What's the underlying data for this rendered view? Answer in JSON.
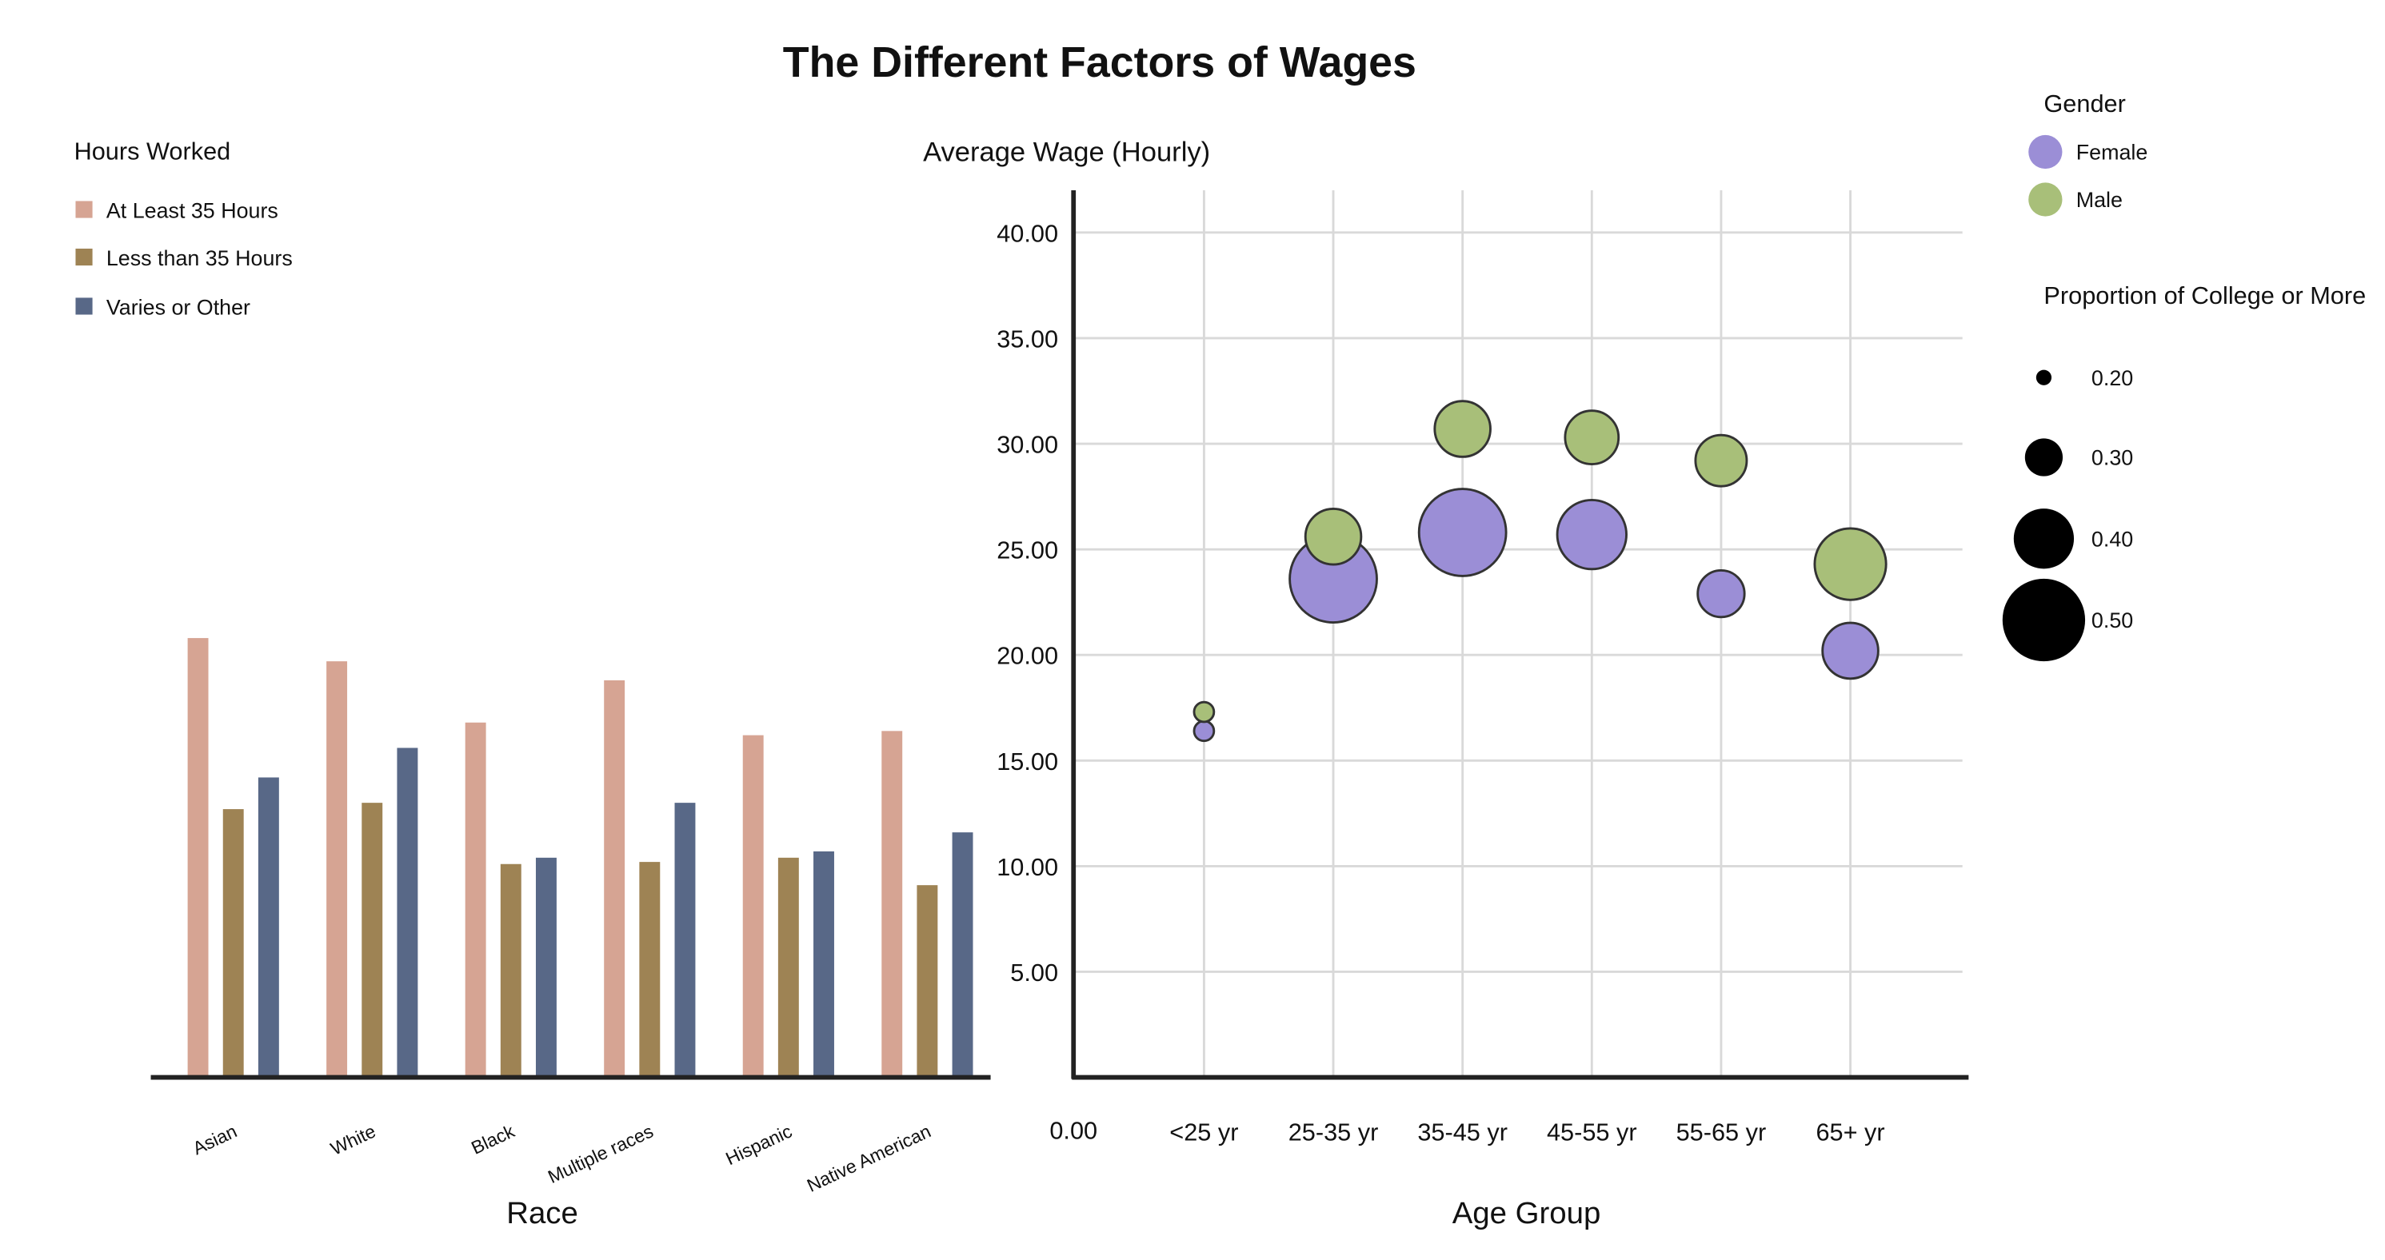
{
  "title": "The Different Factors of Wages",
  "colors": {
    "at_least_35": "#d6a493",
    "less_than_35": "#9e8354",
    "varies": "#586887",
    "female": "#9b8ed6",
    "male": "#a8bf79",
    "size_legend": "#000000"
  },
  "chart_data": [
    {
      "type": "bar",
      "legend_title": "Hours Worked",
      "xlabel": "Race",
      "ylabel": "",
      "categories": [
        "Asian",
        "White",
        "Black",
        "Multiple races",
        "Hispanic",
        "Native American"
      ],
      "series": [
        {
          "name": "At Least 35 Hours",
          "values": [
            20.8,
            19.7,
            16.8,
            18.8,
            16.2,
            16.4
          ]
        },
        {
          "name": "Less than 35 Hours",
          "values": [
            12.7,
            13.0,
            10.1,
            10.2,
            10.4,
            9.1
          ]
        },
        {
          "name": "Varies or Other",
          "values": [
            14.2,
            15.6,
            10.4,
            13.0,
            10.7,
            11.6
          ]
        }
      ],
      "ylim": [
        0,
        42
      ],
      "legend_position": "top-left"
    },
    {
      "type": "scatter",
      "ylabel": "Average Wage (Hourly)",
      "xlabel": "Age Group",
      "categories": [
        "<25 yr",
        "25-35 yr",
        "35-45 yr",
        "45-55 yr",
        "55-65 yr",
        "65+ yr"
      ],
      "y_ticks": [
        "0.00",
        "5.00",
        "10.00",
        "15.00",
        "20.00",
        "25.00",
        "30.00",
        "35.00",
        "40.00"
      ],
      "ylim": [
        0,
        42
      ],
      "grid": true,
      "color_legend_title": "Gender",
      "size_legend_title": "Proportion of College or More",
      "size_legend_values": [
        "0.20",
        "0.30",
        "0.40",
        "0.50"
      ],
      "series": [
        {
          "name": "Female",
          "values": [
            16.4,
            23.6,
            25.8,
            25.7,
            22.9,
            20.2
          ],
          "college_proportion": [
            0.22,
            0.52,
            0.52,
            0.44,
            0.34,
            0.38
          ]
        },
        {
          "name": "Male",
          "values": [
            17.3,
            25.6,
            30.7,
            30.3,
            29.2,
            24.3
          ],
          "college_proportion": [
            0.22,
            0.38,
            0.38,
            0.37,
            0.36,
            0.45
          ]
        }
      ]
    }
  ]
}
